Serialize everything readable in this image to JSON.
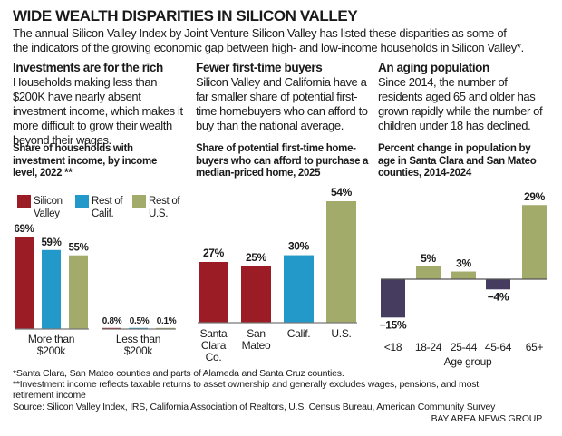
{
  "header": {
    "title": "WIDE WEALTH DISPARITIES IN SILICON VALLEY",
    "subtitle_line1": "The annual Silicon Valley Index by Joint Venture Silicon Valley has listed these disparities as some of",
    "subtitle_line2": "the indicators of the growing economic gap between high- and low-income households in Silicon Valley*."
  },
  "columns": [
    {
      "heading": "Investments are for the rich",
      "body": "Households making less than $200K have nearly absent investment income, which makes it more difficult to grow their wealth beyond their wages."
    },
    {
      "heading": "Fewer first-time buyers",
      "body": "Silicon Valley and California have a far smaller share of potential first-time homebuyers who can afford to buy than the national average."
    },
    {
      "heading": "An aging population",
      "body": "Since 2014, the number of residents aged 65 and older has grown rapidly while the number of children under 18 has declined."
    }
  ],
  "colors": {
    "silicon_valley": "#9b1c24",
    "california": "#2399c9",
    "us": "#a3ab6b",
    "decline": "#463c60"
  },
  "chart_data": [
    {
      "type": "bar",
      "title": "Share of households with investment income, by income level, 2022 **",
      "categories": [
        "More than $200k",
        "Less than $200k"
      ],
      "legend_labels": [
        "Silicon Valley",
        "Rest of Calif.",
        "Rest of U.S."
      ],
      "legend_placement": "top-left",
      "series": [
        {
          "name": "Silicon Valley",
          "values": [
            69,
            0.8
          ],
          "labels": [
            "69%",
            "0.8%"
          ]
        },
        {
          "name": "Rest of Calif.",
          "values": [
            59,
            0.5
          ],
          "labels": [
            "59%",
            "0.5%"
          ]
        },
        {
          "name": "Rest of U.S.",
          "values": [
            55,
            0.1
          ],
          "labels": [
            "55%",
            "0.1%"
          ]
        }
      ],
      "ylim": [
        0,
        69
      ]
    },
    {
      "type": "bar",
      "title": "Share of potential first-time home-buyers who can afford to purchase a median-priced home, 2025",
      "categories": [
        "Santa Clara Co.",
        "San Mateo",
        "Calif.",
        "U.S."
      ],
      "values": [
        27,
        25,
        30,
        54
      ],
      "labels": [
        "27%",
        "25%",
        "30%",
        "54%"
      ],
      "ylim": [
        0,
        54
      ]
    },
    {
      "type": "bar",
      "title": "Percent change in population by age in Santa Clara and San Mateo counties, 2014-2024",
      "xlabel": "Age group",
      "categories": [
        "<18",
        "18-24",
        "25-44",
        "45-64",
        "65+"
      ],
      "values": [
        -15,
        5,
        3,
        -4,
        29
      ],
      "labels": [
        "−15%",
        "5%",
        "3%",
        "−4%",
        "29%"
      ],
      "ylim": [
        -15,
        29
      ]
    }
  ],
  "footer": {
    "note1": "*Santa Clara, San Mateo counties and parts of Alameda and Santa Cruz counties.",
    "note2_line1": "**Investment income reflects taxable returns to asset ownership and generally excludes wages, pensions, and most",
    "note2_line2": "retirement income",
    "source": "Source: Silicon Valley Index, IRS, California Association of Realtors, U.S. Census Bureau, American Community Survey",
    "credit": "BAY AREA NEWS GROUP"
  }
}
